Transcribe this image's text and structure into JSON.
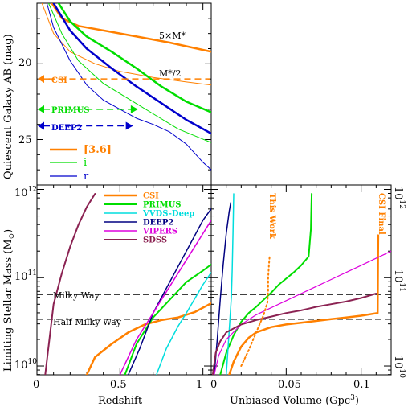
{
  "chart_data": [
    {
      "type": "line",
      "panel": "top-left",
      "ylabel": "Quiescent Galaxy AB (mag)",
      "xlim": [
        0,
        1.05
      ],
      "ylim": [
        28,
        16
      ],
      "yticks": [
        20,
        25
      ],
      "series": [
        {
          "name": "5×M*",
          "band": "[3.6]",
          "color": "#ff8000",
          "width": 2.5,
          "x": [
            0.09,
            0.15,
            0.25,
            0.4,
            0.6,
            0.8,
            1.05
          ],
          "y": [
            16.0,
            17.0,
            17.5,
            17.8,
            18.2,
            18.6,
            19.2
          ]
        },
        {
          "name": "M*/2",
          "band": "[3.6]",
          "color": "#ff8000",
          "width": 1,
          "x": [
            0.03,
            0.1,
            0.2,
            0.35,
            0.5,
            0.7,
            0.9,
            1.05
          ],
          "y": [
            16.0,
            18.0,
            19.2,
            20.0,
            20.5,
            20.9,
            21.2,
            21.4
          ]
        },
        {
          "band": "i",
          "color": "#00dd00",
          "width": 2.5,
          "x": [
            0.13,
            0.2,
            0.3,
            0.45,
            0.6,
            0.75,
            0.9,
            1.05
          ],
          "y": [
            16.0,
            17.2,
            18.2,
            19.2,
            20.3,
            21.5,
            22.5,
            23.2
          ]
        },
        {
          "band": "i",
          "color": "#00dd00",
          "width": 1,
          "x": [
            0.07,
            0.15,
            0.25,
            0.4,
            0.55,
            0.7,
            0.85,
            1.05
          ],
          "y": [
            16.0,
            18.0,
            19.8,
            21.3,
            22.3,
            23.3,
            24.3,
            25.2
          ]
        },
        {
          "band": "r",
          "color": "#0000cc",
          "width": 2.5,
          "x": [
            0.1,
            0.2,
            0.3,
            0.45,
            0.6,
            0.75,
            0.9,
            1.05
          ],
          "y": [
            16.0,
            17.8,
            19.0,
            20.3,
            21.5,
            22.6,
            23.7,
            24.6
          ]
        },
        {
          "band": "r",
          "color": "#0000cc",
          "width": 1,
          "x": [
            0.06,
            0.1,
            0.2,
            0.3,
            0.4,
            0.5,
            0.6,
            0.7,
            0.8,
            0.9,
            1.0,
            1.05
          ],
          "y": [
            16.0,
            17.6,
            19.8,
            21.4,
            22.4,
            23.0,
            23.6,
            24.0,
            24.5,
            25.3,
            26.5,
            27.0
          ]
        }
      ],
      "survey_limits": [
        {
          "name": "CSI",
          "color": "#ff8000",
          "mag": 21.0,
          "x_end": 1.05
        },
        {
          "name": "PRIMUS",
          "color": "#00dd00",
          "mag": 23.0,
          "x_end": 0.58
        },
        {
          "name": "DEEP2",
          "color": "#0000cc",
          "mag": 24.1,
          "x_end": 0.55
        }
      ],
      "legend": {
        "position": "bottom-left",
        "entries": [
          "[3.6]",
          "i",
          "r"
        ]
      }
    },
    {
      "type": "line",
      "panel": "bottom-left",
      "xlabel": "Redshift",
      "ylabel": "Limiting Stellar Mass (M⊙)",
      "xlim": [
        0,
        1.05
      ],
      "ylim": [
        9.9,
        12.05
      ],
      "xticks": [
        0,
        0.5,
        1
      ],
      "yscale": "log",
      "series": [
        {
          "name": "CSI",
          "color": "#ff8000",
          "width": 2.5,
          "x": [
            0.3,
            0.35,
            0.45,
            0.55,
            0.65,
            0.75,
            0.85,
            0.95,
            1.05
          ],
          "y": [
            9.9,
            10.1,
            10.25,
            10.38,
            10.47,
            10.52,
            10.55,
            10.61,
            10.71
          ]
        },
        {
          "name": "PRIMUS",
          "color": "#00dd00",
          "width": 2,
          "x": [
            0.53,
            0.6,
            0.7,
            0.8,
            0.9,
            1.0,
            1.05
          ],
          "y": [
            9.9,
            10.25,
            10.55,
            10.75,
            10.95,
            11.08,
            11.15
          ]
        },
        {
          "name": "VVDS-Deep",
          "color": "#00dddd",
          "width": 1.5,
          "x": [
            0.72,
            0.78,
            0.85,
            0.9,
            1.0,
            1.05
          ],
          "y": [
            9.9,
            10.2,
            10.45,
            10.6,
            10.92,
            11.06
          ]
        },
        {
          "name": "DEEP2",
          "color": "#000080",
          "width": 1.5,
          "x": [
            0.55,
            0.62,
            0.7,
            0.8,
            0.9,
            1.0,
            1.05
          ],
          "y": [
            9.9,
            10.2,
            10.6,
            10.95,
            11.3,
            11.65,
            11.78
          ]
        },
        {
          "name": "VIPERS",
          "color": "#dd00dd",
          "width": 1.5,
          "x": [
            0.5,
            0.6,
            0.7,
            0.8,
            0.9,
            1.0,
            1.05
          ],
          "y": [
            9.9,
            10.3,
            10.6,
            10.9,
            11.2,
            11.5,
            11.65
          ]
        },
        {
          "name": "SDSS",
          "color": "#8b2252",
          "width": 2,
          "x": [
            0.05,
            0.1,
            0.15,
            0.2,
            0.25,
            0.3,
            0.35
          ],
          "y": [
            9.9,
            10.7,
            11.05,
            11.35,
            11.6,
            11.8,
            11.95
          ]
        }
      ],
      "reference_lines": [
        {
          "label": "Milky Way",
          "y": 10.81
        },
        {
          "label": "Half Milky Way",
          "y": 10.53
        }
      ],
      "legend": {
        "position": "top-right"
      }
    },
    {
      "type": "line",
      "panel": "bottom-right",
      "xlabel": "Unbiased Volume (Gpc³)",
      "xlim": [
        0,
        0.12
      ],
      "ylim": [
        9.9,
        12.05
      ],
      "xticks": [
        0,
        0.05,
        0.1
      ],
      "yscale": "log",
      "series": [
        {
          "name": "CSI",
          "color": "#ff8000",
          "width": 2.5,
          "x": [
            0.012,
            0.015,
            0.02,
            0.025,
            0.03,
            0.04,
            0.05,
            0.06,
            0.07,
            0.08,
            0.09,
            0.1,
            0.111,
            0.1112,
            0.1114
          ],
          "y": [
            9.9,
            10.05,
            10.22,
            10.32,
            10.38,
            10.44,
            10.47,
            10.49,
            10.51,
            10.53,
            10.55,
            10.57,
            10.6,
            11.2,
            11.48
          ]
        },
        {
          "name": "PRIMUS",
          "color": "#00dd00",
          "width": 2,
          "x": [
            0.006,
            0.01,
            0.015,
            0.02,
            0.025,
            0.03,
            0.035,
            0.04,
            0.045,
            0.05,
            0.055,
            0.06,
            0.065,
            0.0665,
            0.0668,
            0.067
          ],
          "y": [
            9.9,
            10.15,
            10.35,
            10.5,
            10.6,
            10.67,
            10.75,
            10.83,
            10.92,
            10.99,
            11.06,
            11.14,
            11.24,
            11.55,
            11.8,
            11.95
          ]
        },
        {
          "name": "VVDS-Deep",
          "color": "#00dddd",
          "width": 1.5,
          "x": [
            0.01,
            0.012,
            0.0135,
            0.014,
            0.0145,
            0.015
          ],
          "y": [
            9.9,
            10.4,
            10.8,
            11.08,
            11.5,
            11.95
          ]
        },
        {
          "name": "DEEP2",
          "color": "#000080",
          "width": 1.5,
          "x": [
            0.002,
            0.004,
            0.006,
            0.008,
            0.01,
            0.012,
            0.013
          ],
          "y": [
            9.9,
            10.3,
            10.75,
            11.15,
            11.5,
            11.75,
            11.85
          ]
        },
        {
          "name": "VIPERS",
          "color": "#dd00dd",
          "width": 1.2,
          "x": [
            0.002,
            0.005,
            0.01,
            0.02,
            0.03,
            0.04,
            0.05,
            0.06,
            0.07,
            0.08,
            0.09,
            0.1,
            0.11,
            0.12
          ],
          "y": [
            9.9,
            10.12,
            10.3,
            10.47,
            10.58,
            10.66,
            10.74,
            10.82,
            10.9,
            10.98,
            11.06,
            11.14,
            11.22,
            11.3
          ]
        },
        {
          "name": "SDSS",
          "color": "#8b2252",
          "width": 2,
          "x": [
            0.001,
            0.003,
            0.006,
            0.01,
            0.02,
            0.03,
            0.04,
            0.05,
            0.06,
            0.07,
            0.08,
            0.09,
            0.1,
            0.11
          ],
          "y": [
            9.9,
            10.15,
            10.28,
            10.38,
            10.47,
            10.52,
            10.56,
            10.6,
            10.63,
            10.67,
            10.7,
            10.73,
            10.77,
            10.82
          ]
        },
        {
          "name": "This Work",
          "color": "#ff8000",
          "width": 2,
          "dotted": true,
          "x": [
            0.02,
            0.025,
            0.03,
            0.035,
            0.0375,
            0.038,
            0.038,
            0.0385,
            0.039
          ],
          "y": [
            10.0,
            10.18,
            10.38,
            10.58,
            10.72,
            10.85,
            11.0,
            11.15,
            11.25
          ]
        }
      ],
      "annotations": [
        {
          "text": "This Work",
          "color": "#ff8000"
        },
        {
          "text": "CSI Final",
          "color": "#ff8000"
        }
      ],
      "reference_lines": [
        {
          "label": "Milky Way",
          "y": 10.81
        },
        {
          "label": "Half Milky Way",
          "y": 10.53
        }
      ]
    }
  ],
  "labels": {
    "top_ylabel": "Quiescent Galaxy AB (mag)",
    "bottom_ylabel": "Limiting Stellar Mass (M",
    "bottom_ylabel_sub": "⊙",
    "bottom_ylabel_end": ")",
    "xlabel_left": "Redshift",
    "xlabel_right": "Unbiased Volume (Gpc",
    "xlabel_right_sup": "3",
    "xlabel_right_end": ")",
    "ann_5mstar": "5×M*",
    "ann_mstar_half": "M*/2",
    "ann_csi": "CSI",
    "ann_primus": "PRIMUS",
    "ann_deep2": "DEEP2",
    "leg_36": "[3.6]",
    "leg_i": "i",
    "leg_r": "r",
    "milky_way": "Milky Way",
    "half_milky_way": "Half Milky Way",
    "this_work": "This Work",
    "csi_final": "CSI Final",
    "ytick_10": "10",
    "ytick_exp_10": "10",
    "ytick_exp_11": "11",
    "ytick_exp_12": "12",
    "mag_20": "20",
    "mag_25": "25",
    "xt_0": "0",
    "xt_05": "0.5",
    "xt_1": "1",
    "xt_v0": "0",
    "xt_v005": "0.05",
    "xt_v01": "0.1"
  }
}
